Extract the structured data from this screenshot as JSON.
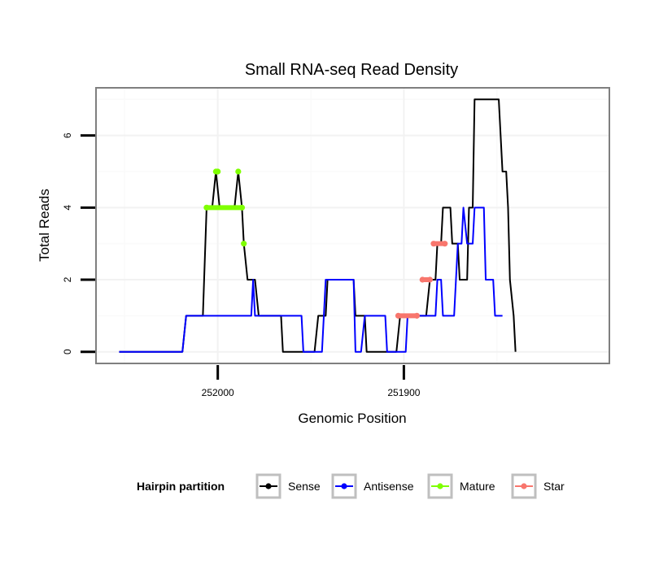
{
  "chart_data": {
    "type": "line",
    "title": "Small RNA-seq Read Density",
    "xlabel": "Genomic Position",
    "ylabel": "Total Reads",
    "x_reversed": true,
    "xlim": [
      252065,
      251790
    ],
    "ylim": [
      -0.3,
      7.3
    ],
    "x_ticks": [
      252000,
      251900
    ],
    "x_tick_labels": [
      "252000",
      "251900"
    ],
    "y_ticks": [
      0,
      2,
      4,
      6
    ],
    "y_tick_labels": [
      "0",
      "2",
      "4",
      "6"
    ],
    "grid": true,
    "legend": {
      "title": "Hairpin partition",
      "position": "bottom",
      "entries": [
        {
          "label": "Sense",
          "color": "#000000"
        },
        {
          "label": "Antisense",
          "color": "#0000ff"
        },
        {
          "label": "Mature",
          "color": "#7fff00"
        },
        {
          "label": "Star",
          "color": "#f8766d"
        }
      ]
    },
    "series": [
      {
        "name": "Sense",
        "color": "#000000",
        "points": [
          [
            252053,
            0
          ],
          [
            252019,
            0
          ],
          [
            252017,
            1
          ],
          [
            252008,
            1
          ],
          [
            252006,
            4
          ],
          [
            252003,
            4
          ],
          [
            252001,
            5
          ],
          [
            251999,
            4
          ],
          [
            251991,
            4
          ],
          [
            251989,
            5
          ],
          [
            251987,
            4
          ],
          [
            251986,
            3
          ],
          [
            251984,
            2
          ],
          [
            251980,
            2
          ],
          [
            251978,
            1
          ],
          [
            251966,
            1
          ],
          [
            251965,
            0
          ],
          [
            251948,
            0
          ],
          [
            251946,
            1
          ],
          [
            251942,
            1
          ],
          [
            251941,
            2
          ],
          [
            251927,
            2
          ],
          [
            251926,
            1
          ],
          [
            251921,
            1
          ],
          [
            251920,
            0
          ],
          [
            251904,
            0
          ],
          [
            251902,
            1
          ],
          [
            251888,
            1
          ],
          [
            251886,
            2
          ],
          [
            251883,
            2
          ],
          [
            251882,
            3
          ],
          [
            251880,
            3
          ],
          [
            251879,
            4
          ],
          [
            251875,
            4
          ],
          [
            251874,
            3
          ],
          [
            251871,
            3
          ],
          [
            251870,
            2
          ],
          [
            251866,
            2
          ],
          [
            251865,
            4
          ],
          [
            251863,
            4
          ],
          [
            251862,
            7
          ],
          [
            251849,
            7
          ],
          [
            251848,
            6
          ],
          [
            251847,
            5
          ],
          [
            251845,
            5
          ],
          [
            251844,
            4
          ],
          [
            251843,
            2
          ],
          [
            251841,
            1
          ],
          [
            251840,
            0
          ]
        ]
      },
      {
        "name": "Antisense",
        "color": "#0000ff",
        "points": [
          [
            252053,
            0
          ],
          [
            252019,
            0
          ],
          [
            252017,
            1
          ],
          [
            251982,
            1
          ],
          [
            251981,
            2
          ],
          [
            251980,
            1
          ],
          [
            251955,
            1
          ],
          [
            251954,
            0
          ],
          [
            251944,
            0
          ],
          [
            251942,
            2
          ],
          [
            251927,
            2
          ],
          [
            251926,
            0
          ],
          [
            251923,
            0
          ],
          [
            251921,
            1
          ],
          [
            251910,
            1
          ],
          [
            251909,
            0
          ],
          [
            251899,
            0
          ],
          [
            251898,
            1
          ],
          [
            251883,
            1
          ],
          [
            251882,
            2
          ],
          [
            251880,
            2
          ],
          [
            251879,
            1
          ],
          [
            251873,
            1
          ],
          [
            251871,
            3
          ],
          [
            251869,
            3
          ],
          [
            251868,
            4
          ],
          [
            251866,
            3
          ],
          [
            251863,
            3
          ],
          [
            251862,
            4
          ],
          [
            251857,
            4
          ],
          [
            251856,
            2
          ],
          [
            251852,
            2
          ],
          [
            251851,
            1
          ],
          [
            251847,
            1
          ]
        ]
      },
      {
        "name": "Mature",
        "color": "#7fff00",
        "points": [
          [
            252006,
            4
          ],
          [
            251987,
            4
          ],
          [
            252001,
            5
          ],
          [
            252000,
            5
          ],
          [
            251989,
            5
          ],
          [
            251986,
            3
          ]
        ]
      },
      {
        "name": "Star",
        "color": "#f8766d",
        "points": [
          [
            251903,
            1
          ],
          [
            251893,
            1
          ],
          [
            251890,
            2
          ],
          [
            251886,
            2
          ],
          [
            251884,
            3
          ],
          [
            251878,
            3
          ]
        ]
      }
    ]
  }
}
